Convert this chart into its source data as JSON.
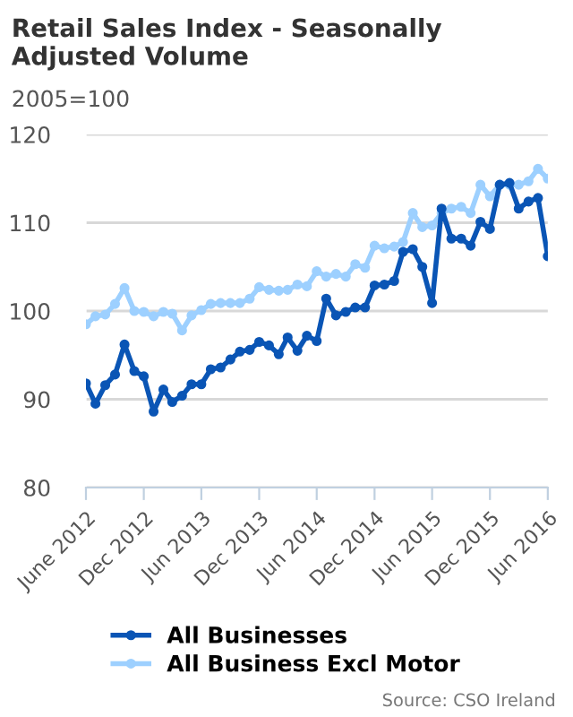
{
  "chart_data": {
    "type": "line",
    "title": "Retail Sales Index - Seasonally Adjusted Volume",
    "subtitle": "2005=100",
    "annotations": [
      "Source: CSO Ireland"
    ],
    "x": [
      "2012-06",
      "2012-07",
      "2012-08",
      "2012-09",
      "2012-10",
      "2012-11",
      "2012-12",
      "2013-01",
      "2013-02",
      "2013-03",
      "2013-04",
      "2013-05",
      "2013-06",
      "2013-07",
      "2013-08",
      "2013-09",
      "2013-10",
      "2013-11",
      "2013-12",
      "2014-01",
      "2014-02",
      "2014-03",
      "2014-04",
      "2014-05",
      "2014-06",
      "2014-07",
      "2014-08",
      "2014-09",
      "2014-10",
      "2014-11",
      "2014-12",
      "2015-01",
      "2015-02",
      "2015-03",
      "2015-04",
      "2015-05",
      "2015-06",
      "2015-07",
      "2015-08",
      "2015-09",
      "2015-10",
      "2015-11",
      "2015-12",
      "2016-01",
      "2016-02",
      "2016-03",
      "2016-04",
      "2016-05",
      "2016-06"
    ],
    "series": [
      {
        "name": "All Businesses",
        "color": "#0a55b5",
        "values": [
          91.8,
          89.5,
          91.6,
          92.8,
          96.2,
          93.2,
          92.6,
          88.6,
          91.1,
          89.7,
          90.4,
          91.7,
          91.7,
          93.4,
          93.6,
          94.5,
          95.4,
          95.6,
          96.5,
          96.1,
          95.1,
          97.0,
          95.5,
          97.2,
          96.6,
          101.4,
          99.5,
          99.9,
          100.4,
          100.4,
          102.9,
          103.0,
          103.4,
          106.7,
          107.0,
          105.0,
          100.9,
          111.6,
          108.2,
          108.2,
          107.4,
          110.1,
          109.3,
          114.3,
          114.5,
          111.6,
          112.4,
          112.8,
          106.2
        ]
      },
      {
        "name": "All Business Excl Motor",
        "color": "#9dd0ff",
        "values": [
          98.5,
          99.4,
          99.6,
          100.8,
          102.6,
          100.0,
          99.9,
          99.4,
          99.9,
          99.7,
          97.8,
          99.5,
          100.1,
          100.8,
          100.9,
          100.9,
          100.9,
          101.4,
          102.7,
          102.4,
          102.3,
          102.4,
          103.0,
          102.8,
          104.5,
          103.9,
          104.2,
          103.9,
          105.3,
          104.9,
          107.4,
          107.1,
          107.3,
          107.8,
          111.1,
          109.5,
          109.7,
          111.1,
          111.6,
          111.8,
          111.1,
          114.3,
          113.0,
          114.3,
          114.3,
          114.3,
          114.7,
          116.1,
          115.0
        ]
      }
    ],
    "xlim": [
      "2012-06",
      "2016-06"
    ],
    "xticks": [
      {
        "value": "2012-06",
        "label": "June 2012"
      },
      {
        "value": "2012-12",
        "label": "Dec 2012"
      },
      {
        "value": "2013-06",
        "label": "Jun 2013"
      },
      {
        "value": "2013-12",
        "label": "Dec 2013"
      },
      {
        "value": "2014-06",
        "label": "Jun 2014"
      },
      {
        "value": "2014-12",
        "label": "Dec 2014"
      },
      {
        "value": "2015-06",
        "label": "Jun 2015"
      },
      {
        "value": "2015-12",
        "label": "Dec 2015"
      },
      {
        "value": "2016-06",
        "label": "Jun 2016"
      }
    ],
    "ylim": [
      80,
      120
    ],
    "yticks": [
      80,
      90,
      100,
      110,
      120
    ],
    "grid": "y",
    "legend": "bottom",
    "marker": "circle",
    "line_style": "solid"
  }
}
